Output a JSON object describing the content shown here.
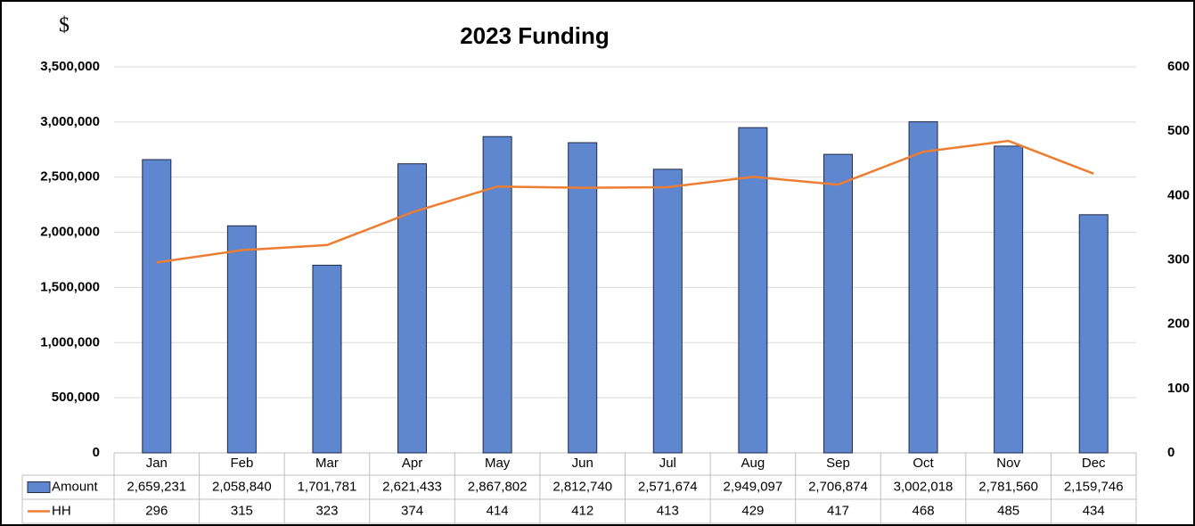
{
  "chart_data": {
    "type": "bar",
    "title": "2023 Funding",
    "ylabel": "$",
    "categories": [
      "Jan",
      "Feb",
      "Mar",
      "Apr",
      "May",
      "Jun",
      "Jul",
      "Aug",
      "Sep",
      "Oct",
      "Nov",
      "Dec"
    ],
    "series": [
      {
        "name": "Amount",
        "color": "#5f87cf",
        "values": [
          2659231,
          2058840,
          1701781,
          2621433,
          2867802,
          2812740,
          2571674,
          2949097,
          2706874,
          3002018,
          2781560,
          2159746
        ],
        "value_labels": [
          "2,659,231",
          "2,058,840",
          "1,701,781",
          "2,621,433",
          "2,867,802",
          "2,812,740",
          "2,571,674",
          "2,949,097",
          "2,706,874",
          "3,002,018",
          "2,781,560",
          "2,159,746"
        ]
      },
      {
        "name": "HH",
        "color": "#ed7d31",
        "type": "line",
        "axis": "y2",
        "values": [
          296,
          315,
          323,
          374,
          414,
          412,
          413,
          429,
          417,
          468,
          485,
          434
        ]
      }
    ],
    "ylim": [
      0,
      3500000
    ],
    "yticks": [
      0,
      {
        "value": 500000,
        "label": "500,000"
      },
      {
        "value": 1000000,
        "label": "1,000,000"
      },
      {
        "value": 1500000,
        "label": "1,500,000"
      },
      {
        "value": 2000000,
        "label": "2,000,000"
      },
      {
        "value": 2500000,
        "label": "2,500,000"
      },
      {
        "value": 3000000,
        "label": "3,000,000"
      },
      {
        "value": 3500000,
        "label": "3,500,000"
      }
    ],
    "y2lim": [
      0,
      600
    ],
    "y2ticks": [
      0,
      100,
      200,
      300,
      400,
      500,
      600
    ],
    "grid": true
  }
}
